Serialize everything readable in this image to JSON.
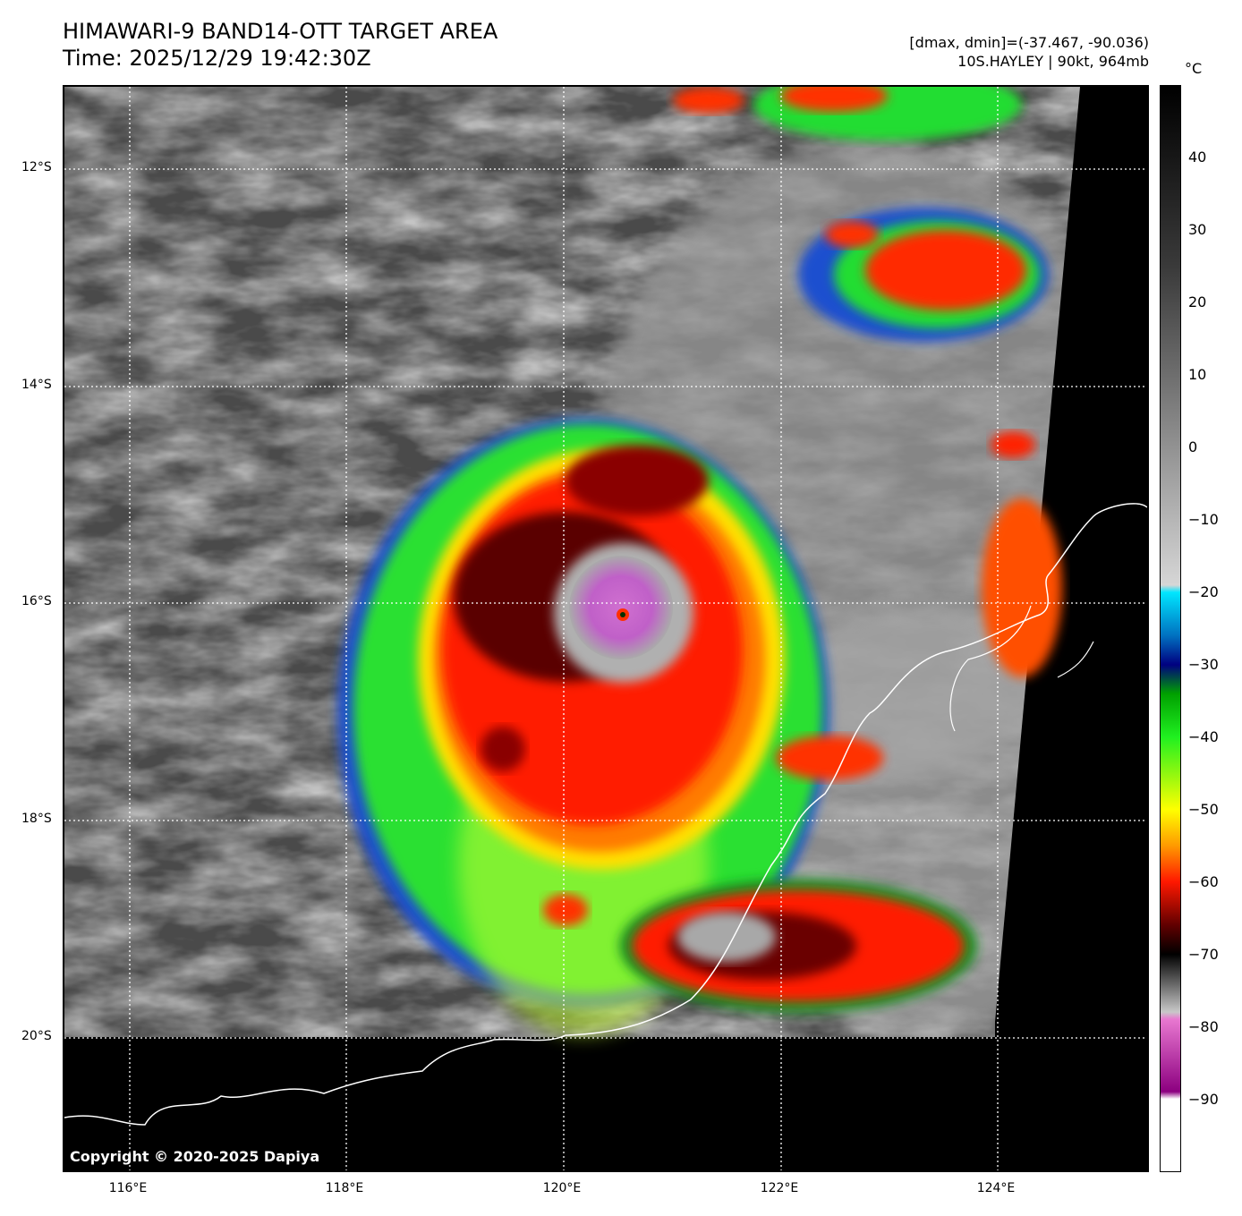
{
  "header": {
    "title_line1": "HIMAWARI-9 BAND14-OTT TARGET AREA",
    "title_line2": "Time: 2025/12/29 19:42:30Z",
    "dmax_dmin": "[dmax, dmin]=(-37.467, -90.036)",
    "storm_info": "10S.HAYLEY | 90kt, 964mb"
  },
  "map": {
    "lat_labels": [
      "12°S",
      "14°S",
      "16°S",
      "18°S",
      "20°S"
    ],
    "lon_labels": [
      "116°E",
      "118°E",
      "120°E",
      "122°E",
      "124°E"
    ],
    "copyright": "Copyright © 2020-2025 Dapiya"
  },
  "colorbar": {
    "unit": "°C",
    "ticks": [
      "40",
      "30",
      "20",
      "10",
      "0",
      "−10",
      "−20",
      "−30",
      "−40",
      "−50",
      "−60",
      "−70",
      "−80",
      "−90"
    ],
    "tick_values": [
      40,
      30,
      20,
      10,
      0,
      -10,
      -20,
      -30,
      -40,
      -50,
      -60,
      -70,
      -80,
      -90
    ],
    "range": [
      -100,
      50
    ],
    "stops": [
      {
        "t": 50,
        "c": "#000000"
      },
      {
        "t": 25,
        "c": "#3a3a3a"
      },
      {
        "t": 10,
        "c": "#6e6e6e"
      },
      {
        "t": -19,
        "c": "#d6d6d6"
      },
      {
        "t": -20,
        "c": "#00e6ff"
      },
      {
        "t": -26,
        "c": "#0070c0"
      },
      {
        "t": -30,
        "c": "#000080"
      },
      {
        "t": -34,
        "c": "#00a000"
      },
      {
        "t": -40,
        "c": "#20f020"
      },
      {
        "t": -50,
        "c": "#ffff00"
      },
      {
        "t": -55,
        "c": "#ff9a00"
      },
      {
        "t": -60,
        "c": "#ff1800"
      },
      {
        "t": -66,
        "c": "#600000"
      },
      {
        "t": -70,
        "c": "#000000"
      },
      {
        "t": -78,
        "c": "#c8c8c8"
      },
      {
        "t": -79,
        "c": "#e878d0"
      },
      {
        "t": -89,
        "c": "#8c0080"
      },
      {
        "t": -90,
        "c": "#ffffff"
      },
      {
        "t": -100,
        "c": "#ffffff"
      }
    ]
  }
}
